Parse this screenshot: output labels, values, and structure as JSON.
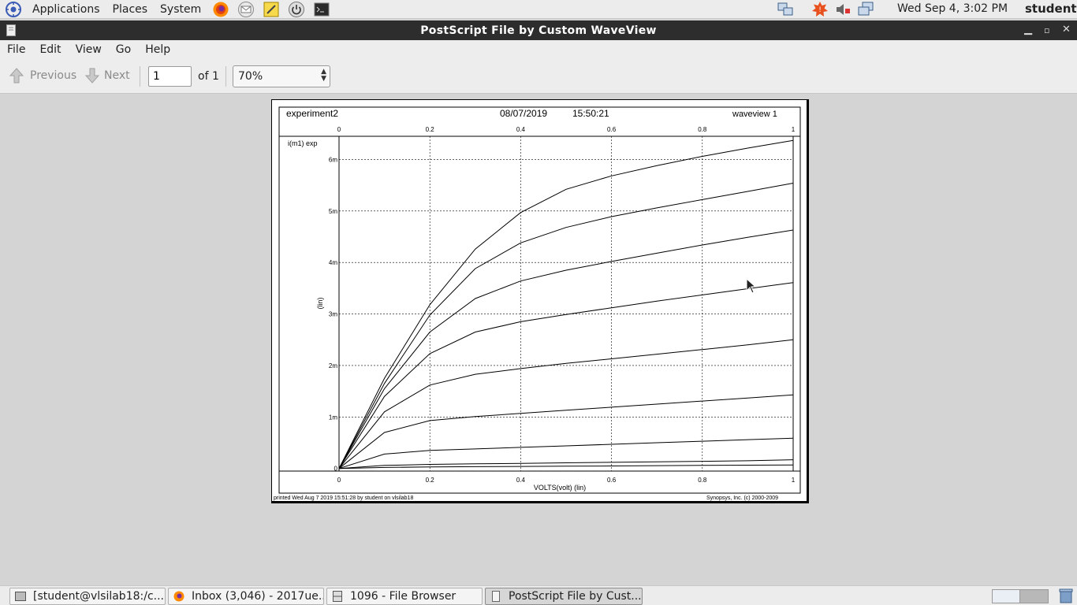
{
  "panel": {
    "menus": [
      "Applications",
      "Places",
      "System"
    ],
    "clock": "Wed Sep  4,  3:02 PM",
    "user": "student"
  },
  "window": {
    "title": "PostScript File by Custom WaveView"
  },
  "menubar": [
    "File",
    "Edit",
    "View",
    "Go",
    "Help"
  ],
  "toolbar": {
    "previous_label": "Previous",
    "next_label": "Next",
    "page_value": "1",
    "page_of": "of 1",
    "zoom": "70%"
  },
  "document": {
    "header_left": "experiment2",
    "header_date": "08/07/2019",
    "header_time": "15:50:21",
    "header_right": "waveview 1",
    "signal_label": "i(m1) exp",
    "y_unit_label": "(lin)",
    "x_axis_label": "VOLTS(volt) (lin)",
    "footer_left": "printed Wed Aug  7 2019 15:51:28 by student on vlsilab18",
    "footer_right": "Synopsys, Inc. (c) 2000-2009"
  },
  "chart_data": {
    "type": "line",
    "x_ticks": [
      "0",
      "0.2",
      "0.4",
      "0.6",
      "0.8",
      "1"
    ],
    "y_ticks": [
      "0",
      "1m",
      "2m",
      "3m",
      "4m",
      "5m",
      "6m"
    ],
    "xlim": [
      0,
      1
    ],
    "ylim": [
      -0.05,
      6.45
    ],
    "grid": true,
    "x": [
      0,
      0.1,
      0.2,
      0.3,
      0.4,
      0.5,
      0.6,
      0.7,
      0.8,
      0.9,
      1.0
    ],
    "series": [
      {
        "values": [
          0,
          0.02,
          0.03,
          0.035,
          0.04,
          0.045,
          0.05,
          0.055,
          0.06,
          0.065,
          0.07
        ]
      },
      {
        "values": [
          0,
          0.06,
          0.08,
          0.09,
          0.1,
          0.11,
          0.12,
          0.13,
          0.14,
          0.15,
          0.17
        ]
      },
      {
        "values": [
          0,
          0.28,
          0.35,
          0.38,
          0.41,
          0.44,
          0.47,
          0.5,
          0.53,
          0.56,
          0.59
        ]
      },
      {
        "values": [
          0,
          0.7,
          0.93,
          1.01,
          1.07,
          1.13,
          1.19,
          1.25,
          1.31,
          1.37,
          1.43
        ]
      },
      {
        "values": [
          0,
          1.1,
          1.62,
          1.83,
          1.94,
          2.04,
          2.13,
          2.22,
          2.31,
          2.4,
          2.5
        ]
      },
      {
        "values": [
          0,
          1.4,
          2.23,
          2.65,
          2.85,
          2.99,
          3.12,
          3.25,
          3.37,
          3.49,
          3.61
        ]
      },
      {
        "values": [
          0,
          1.55,
          2.65,
          3.3,
          3.64,
          3.85,
          4.02,
          4.18,
          4.34,
          4.49,
          4.63
        ]
      },
      {
        "values": [
          0,
          1.65,
          2.98,
          3.88,
          4.38,
          4.68,
          4.89,
          5.06,
          5.22,
          5.38,
          5.54
        ]
      },
      {
        "values": [
          0,
          1.75,
          3.18,
          4.26,
          4.97,
          5.42,
          5.68,
          5.88,
          6.06,
          6.22,
          6.37
        ]
      }
    ]
  },
  "taskbar": [
    {
      "label": "[student@vlsilab18:/c..."
    },
    {
      "label": "Inbox (3,046) - 2017ue..."
    },
    {
      "label": "1096 - File Browser"
    },
    {
      "label": "PostScript File by Cust..."
    }
  ]
}
